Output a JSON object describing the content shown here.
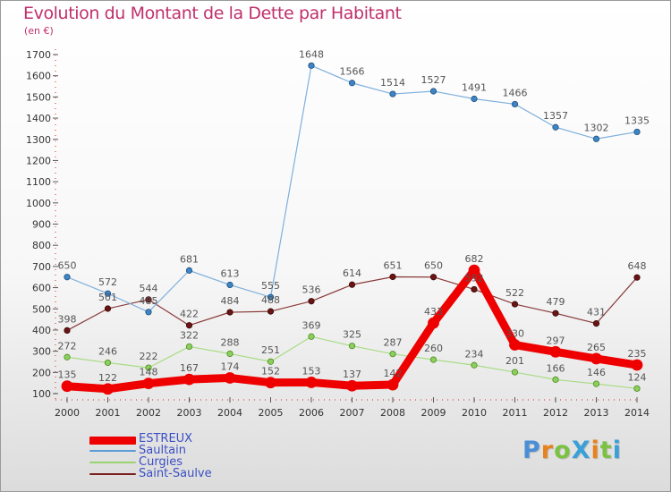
{
  "header": {
    "title": "Evolution du Montant de la Dette par Habitant",
    "subtitle": "(en €)"
  },
  "logo": {
    "text": "ProXiti",
    "colors": [
      "#4a8fd6",
      "#e8821c",
      "#7cc242",
      "#3aa0d8",
      "#e8821c",
      "#7cc242",
      "#3aa0d8"
    ]
  },
  "chart_data": {
    "type": "line",
    "title": "Evolution du Montant de la Dette par Habitant",
    "subtitle": "(en €)",
    "xlabel": "",
    "ylabel": "",
    "ylim": [
      100,
      1700
    ],
    "yticks": [
      100,
      200,
      300,
      400,
      500,
      600,
      700,
      800,
      900,
      1000,
      1100,
      1200,
      1300,
      1400,
      1500,
      1600,
      1700
    ],
    "grid": false,
    "legend_position": "bottom-left",
    "categories": [
      "2000",
      "2001",
      "2002",
      "2003",
      "2004",
      "2005",
      "2006",
      "2007",
      "2008",
      "2009",
      "2010",
      "2011",
      "2012",
      "2013",
      "2014"
    ],
    "series": [
      {
        "name": "Saint-Saulve",
        "color": "#7a1f1f",
        "values": [
          398,
          501,
          544,
          422,
          484,
          488,
          536,
          614,
          651,
          650,
          592,
          522,
          479,
          431,
          648
        ],
        "labels": [
          "398",
          "501",
          "544",
          "422",
          "484",
          "488",
          "536",
          "614",
          "651",
          "650",
          "592",
          "522",
          "479",
          "431",
          "648"
        ]
      },
      {
        "name": "Curgies",
        "color": "#99d36f",
        "values": [
          272,
          246,
          222,
          322,
          288,
          251,
          369,
          325,
          287,
          260,
          234,
          201,
          166,
          146,
          124
        ],
        "labels": [
          "272",
          "246",
          "222",
          "322",
          "288",
          "251",
          "369",
          "325",
          "287",
          "260",
          "234",
          "201",
          "166",
          "146",
          "124"
        ]
      },
      {
        "name": "Saultain",
        "color": "#5b9bd5",
        "values": [
          650,
          572,
          485,
          681,
          613,
          555,
          1648,
          1566,
          1514,
          1527,
          1491,
          1466,
          1357,
          1302,
          1335
        ],
        "labels": [
          "650",
          "572",
          "485",
          "681",
          "613",
          "555",
          "1648",
          "1566",
          "1514",
          "1527",
          "1491",
          "1466",
          "1357",
          "1302",
          "1335"
        ]
      },
      {
        "name": "ESTREUX",
        "color": "#ee0000",
        "values": [
          135,
          122,
          148,
          167,
          174,
          152,
          153,
          137,
          142,
          433,
          682,
          330,
          297,
          265,
          235
        ],
        "labels": [
          "135",
          "122",
          "148",
          "167",
          "174",
          "152",
          "153",
          "137",
          "142",
          "433",
          "682",
          "330",
          "297",
          "265",
          "235"
        ]
      }
    ],
    "legend": [
      "ESTREUX",
      "Saultain",
      "Curgies",
      "Saint-Saulve"
    ]
  }
}
